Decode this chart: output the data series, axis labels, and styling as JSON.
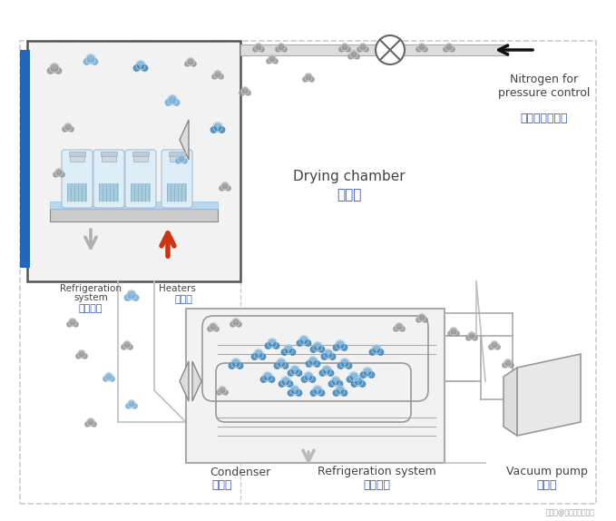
{
  "bg_color": "#ffffff",
  "drying_chamber_label_en": "Drying chamber",
  "drying_chamber_label_cn": "冻干室",
  "condenser_label_en": "Condenser",
  "condenser_label_cn": "冷凝器",
  "refrigeration_label_en": "Refrigeration system",
  "refrigeration_label_cn": "制冷系统",
  "heaters_label_en": "Heaters",
  "heaters_label_cn": "加热器",
  "nitrogen_label_en": "Nitrogen for\npressure control",
  "nitrogen_label_cn": "控制压力的氮气",
  "vacuum_label_en": "Vacuum pump",
  "vacuum_label_cn": "真空泵",
  "watermark": "搜狐号@上海红缎冰干机",
  "blue_color": "#3355bb",
  "label_gray": "#444444",
  "box_gray": "#888888",
  "light_gray_fill": "#f2f2f2",
  "dark_blue": "#1a50a0",
  "molecule_gray": "#999999",
  "molecule_blue": "#7ab0d8",
  "molecule_blue_dark": "#4488bb",
  "pipe_gray": "#aaaaaa",
  "shelf_blue": "#b8d8ee",
  "vial_body": "#ddeef8",
  "vial_line": "#aabbcc",
  "arrow_gray": "#b0b0b0",
  "arrow_red": "#cc3311",
  "condenser_border": "#aaaaaa"
}
